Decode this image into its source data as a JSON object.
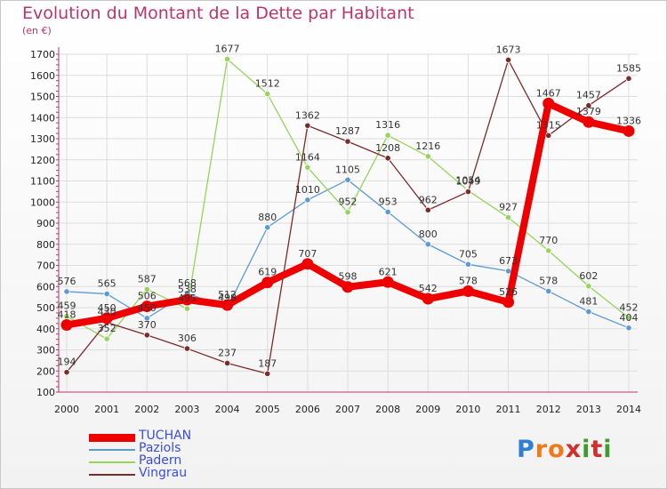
{
  "title": "Evolution du Montant de la Dette par Habitant",
  "unit": "(en €)",
  "brand": "Proxiti",
  "colors": {
    "tuchan": "#ee0000",
    "paziols": "#5b9ad5",
    "padern": "#96d45a",
    "vingrau": "#7b2b2b",
    "axis": "#c0336a",
    "grid": "#dddddd"
  },
  "chart_data": {
    "type": "line",
    "title": "Evolution du Montant de la Dette par Habitant",
    "ylabel": "(en €)",
    "xlabel": "",
    "ylim": [
      100,
      1700
    ],
    "yticks": [
      100,
      200,
      300,
      400,
      500,
      600,
      700,
      800,
      900,
      1000,
      1100,
      1200,
      1300,
      1400,
      1500,
      1600,
      1700
    ],
    "x": [
      "2000",
      "2001",
      "2002",
      "2003",
      "2004",
      "2005",
      "2006",
      "2007",
      "2008",
      "2009",
      "2010",
      "2011",
      "2012",
      "2013",
      "2014"
    ],
    "grid": true,
    "legend_position": "bottom-left",
    "series": [
      {
        "name": "TUCHAN",
        "key": "tuchan",
        "values": [
          418,
          450,
          506,
          538,
          512,
          619,
          707,
          598,
          621,
          542,
          578,
          526,
          1467,
          1379,
          1336
        ]
      },
      {
        "name": "Paziols",
        "key": "paziols",
        "values": [
          576,
          565,
          450,
          568,
          498,
          880,
          1010,
          1105,
          953,
          800,
          705,
          673,
          578,
          481,
          404
        ]
      },
      {
        "name": "Padern",
        "key": "padern",
        "values": [
          459,
          352,
          587,
          495,
          1677,
          1512,
          1164,
          952,
          1316,
          1216,
          1054,
          927,
          770,
          602,
          452
        ]
      },
      {
        "name": "Vingrau",
        "key": "vingrau",
        "values": [
          194,
          430,
          370,
          306,
          237,
          187,
          1362,
          1287,
          1208,
          962,
          1049,
          1673,
          1315,
          1457,
          1585
        ]
      }
    ]
  }
}
